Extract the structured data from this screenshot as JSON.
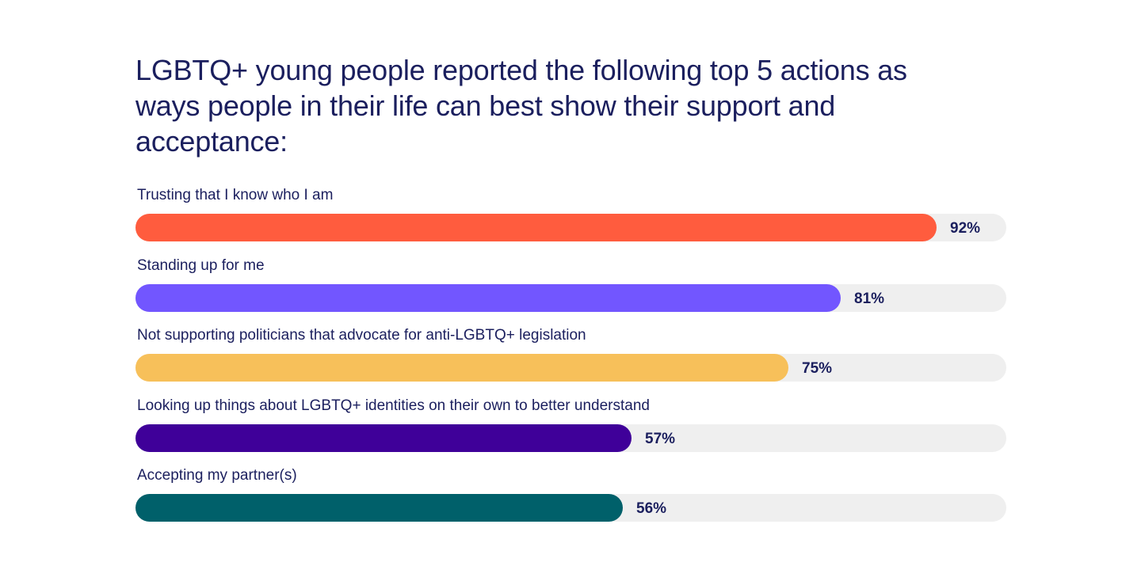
{
  "chart_data": {
    "type": "bar",
    "orientation": "horizontal",
    "title": "LGBTQ+ young people reported the following top 5 actions as ways people in their life can best show their support and acceptance:",
    "categories": [
      "Trusting that I know who I am",
      "Standing up for me",
      "Not supporting politicians that advocate for anti-LGBTQ+ legislation",
      "Looking up things about LGBTQ+ identities on their own to better understand",
      "Accepting my partner(s)"
    ],
    "values": [
      92,
      81,
      75,
      57,
      56
    ],
    "value_labels": [
      "92%",
      "81%",
      "75%",
      "57%",
      "56%"
    ],
    "xlim": [
      0,
      100
    ],
    "colors": [
      "#ff5c3e",
      "#7256ff",
      "#f7c05a",
      "#3f0099",
      "#00606a"
    ],
    "track_color": "#efefef",
    "grid": false,
    "legend": "none"
  }
}
